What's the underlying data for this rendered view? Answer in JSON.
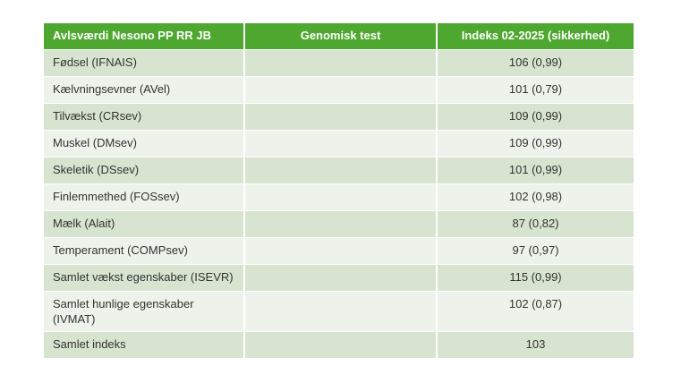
{
  "table": {
    "columns": [
      {
        "label": "Avlsværdi Nesono PP RR JB",
        "align": "left"
      },
      {
        "label": "Genomisk test",
        "align": "center"
      },
      {
        "label": "Indeks 02-2025 (sikkerhed)",
        "align": "center"
      }
    ],
    "rows": [
      {
        "label": "Fødsel (IFNAIS)",
        "genomisk_test": "",
        "indeks": "106 (0,99)"
      },
      {
        "label": "Kælvningsevner (AVel)",
        "genomisk_test": "",
        "indeks": "101 (0,79)"
      },
      {
        "label": "Tilvækst (CRsev)",
        "genomisk_test": "",
        "indeks": "109 (0,99)"
      },
      {
        "label": "Muskel (DMsev)",
        "genomisk_test": "",
        "indeks": "109 (0,99)"
      },
      {
        "label": "Skeletik (DSsev)",
        "genomisk_test": "",
        "indeks": "101 (0,99)"
      },
      {
        "label": "Finlemmethed (FOSsev)",
        "genomisk_test": "",
        "indeks": "102 (0,98)"
      },
      {
        "label": "Mælk (Alait)",
        "genomisk_test": "",
        "indeks": "87 (0,82)"
      },
      {
        "label": "Temperament (COMPsev)",
        "genomisk_test": "",
        "indeks": "97 (0,97)"
      },
      {
        "label": "Samlet vækst egenskaber (ISEVR)",
        "genomisk_test": "",
        "indeks": "115 (0,99)"
      },
      {
        "label": "Samlet hunlige egenskaber (IVMAT)",
        "genomisk_test": "",
        "indeks": "102 (0,87)"
      },
      {
        "label": "Samlet indeks",
        "genomisk_test": "",
        "indeks": "103"
      }
    ],
    "colors": {
      "header_bg": "#4EA72E",
      "header_text": "#FFFFFF",
      "row_odd_bg": "#D7E4D0",
      "row_even_bg": "#EDF2EA",
      "body_text": "#333333",
      "grid": "#FFFFFF"
    }
  }
}
